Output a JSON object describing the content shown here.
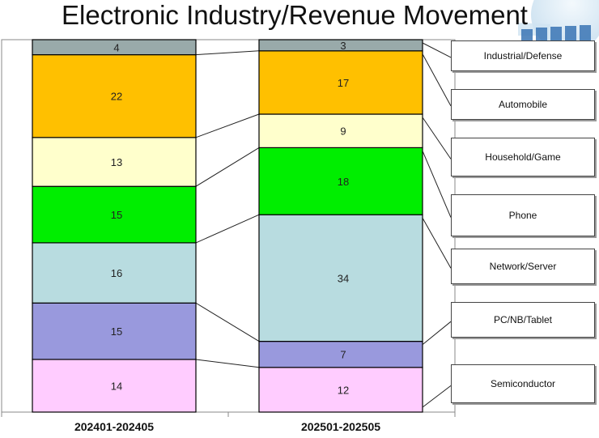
{
  "title": "Electronic Industry/Revenue Movement",
  "chart_data": {
    "type": "bar",
    "stacked": true,
    "percent_scale": true,
    "title": "Electronic Industry/Revenue Movement",
    "categories": [
      "202401-202405",
      "202501-202505"
    ],
    "series": [
      {
        "name": "Semiconductor",
        "values": [
          14,
          12
        ],
        "color": "#FFCCFF"
      },
      {
        "name": "PC/NB/Tablet",
        "values": [
          15,
          7
        ],
        "color": "#9999DD"
      },
      {
        "name": "Network/Server",
        "values": [
          16,
          34
        ],
        "color": "#B8DCE0"
      },
      {
        "name": "Phone",
        "values": [
          15,
          18
        ],
        "color": "#00EE00"
      },
      {
        "name": "Household/Game",
        "values": [
          13,
          9
        ],
        "color": "#FFFFCC"
      },
      {
        "name": "Automobile",
        "values": [
          22,
          17
        ],
        "color": "#FFC000"
      },
      {
        "name": "Industrial/Defense",
        "values": [
          4,
          3
        ],
        "color": "#99AAAA"
      }
    ],
    "legend": [
      "Industrial/Defense",
      "Automobile",
      "Household/Game",
      "Phone",
      "Network/Server",
      "PC/NB/Tablet",
      "Semiconductor"
    ],
    "legend_position": "right",
    "xlabel": "",
    "ylabel": "",
    "ylim": [
      0,
      100
    ]
  }
}
